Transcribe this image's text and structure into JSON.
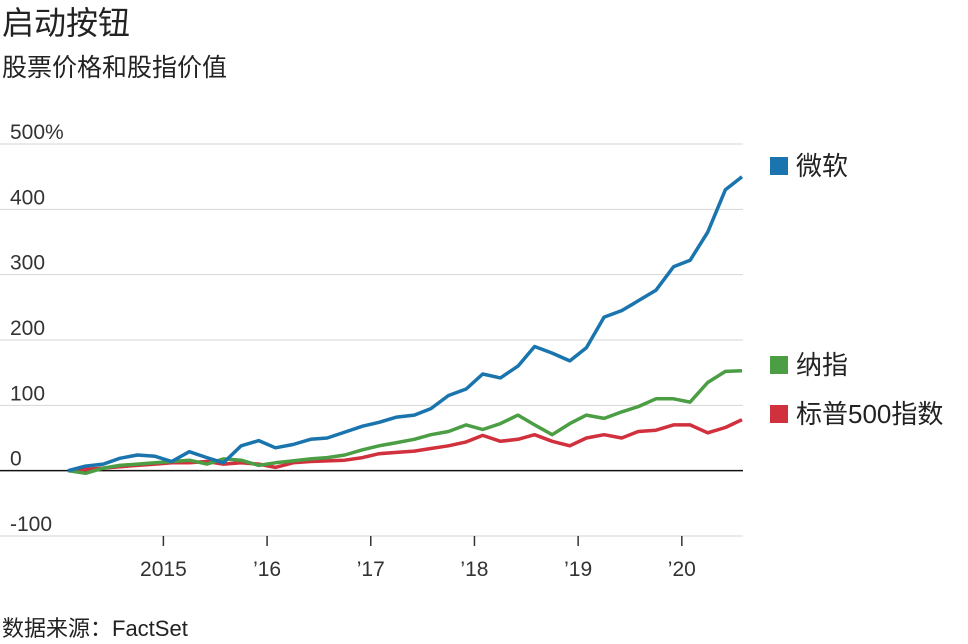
{
  "chart_data": {
    "type": "line",
    "title": "启动按钮",
    "subtitle": "股票价格和股指价值",
    "source": "数据来源：FactSet",
    "x": [
      2014.08,
      2014.25,
      2014.42,
      2014.58,
      2014.75,
      2014.92,
      2015.08,
      2015.25,
      2015.42,
      2015.58,
      2015.75,
      2015.92,
      2016.08,
      2016.25,
      2016.42,
      2016.58,
      2016.75,
      2016.92,
      2017.08,
      2017.25,
      2017.42,
      2017.58,
      2017.75,
      2017.92,
      2018.08,
      2018.25,
      2018.42,
      2018.58,
      2018.75,
      2018.92,
      2019.08,
      2019.25,
      2019.42,
      2019.58,
      2019.75,
      2019.92,
      2020.08,
      2020.25,
      2020.42,
      2020.58
    ],
    "series": [
      {
        "name": "微软",
        "color": "#1a74ad",
        "values": [
          0,
          7,
          10,
          19,
          24,
          22,
          14,
          29,
          20,
          12,
          38,
          46,
          35,
          40,
          48,
          50,
          59,
          68,
          74,
          82,
          85,
          95,
          115,
          125,
          148,
          142,
          160,
          190,
          180,
          168,
          188,
          235,
          245,
          260,
          276,
          312,
          322,
          365,
          430,
          450
        ]
      },
      {
        "name": "纳指",
        "color": "#4b9e44",
        "values": [
          0,
          -4,
          4,
          8,
          10,
          12,
          14,
          16,
          10,
          18,
          16,
          8,
          12,
          15,
          18,
          20,
          24,
          32,
          38,
          43,
          48,
          55,
          60,
          70,
          63,
          72,
          85,
          70,
          55,
          72,
          85,
          80,
          90,
          98,
          110,
          110,
          105,
          135,
          152,
          153
        ]
      },
      {
        "name": "标普500指数",
        "color": "#d1303d",
        "values": [
          0,
          2,
          4,
          6,
          8,
          10,
          12,
          12,
          14,
          10,
          12,
          10,
          5,
          12,
          14,
          15,
          16,
          20,
          26,
          28,
          30,
          34,
          38,
          44,
          54,
          45,
          48,
          55,
          45,
          38,
          50,
          55,
          50,
          60,
          62,
          70,
          70,
          58,
          66,
          78
        ]
      }
    ],
    "xlim": [
      2014.08,
      2020.59
    ],
    "xticks": [
      {
        "value": 2015,
        "label": "2015"
      },
      {
        "value": 2016,
        "label": "’16"
      },
      {
        "value": 2017,
        "label": "’17"
      },
      {
        "value": 2018,
        "label": "’18"
      },
      {
        "value": 2019,
        "label": "’19"
      },
      {
        "value": 2020,
        "label": "’20"
      }
    ],
    "ylim": [
      -100,
      500
    ],
    "yticks": [
      -100,
      0,
      100,
      200,
      300,
      {
        "value": 400,
        "label": "400"
      },
      {
        "value": 500,
        "label": "500%"
      }
    ],
    "grid": true
  }
}
